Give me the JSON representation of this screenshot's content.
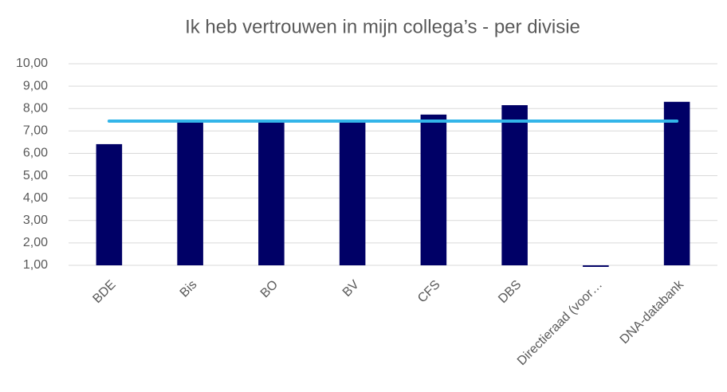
{
  "chart_data": {
    "type": "bar",
    "title": "Ik heb vertrouwen in mijn collega’s - per divisie",
    "categories": [
      "BDE",
      "Bis",
      "BO",
      "BV",
      "CFS",
      "DBS",
      "Directieraad (voor…",
      "DNA-databank"
    ],
    "series": [
      {
        "type": "bar",
        "color": "#000066",
        "values": [
          6.41,
          7.4,
          7.4,
          7.4,
          7.73,
          8.15,
          0.93,
          8.3
        ]
      },
      {
        "type": "line",
        "color": "#33b5e9",
        "values": [
          7.44,
          7.44,
          7.44,
          7.44,
          7.44,
          7.44,
          7.44,
          7.44
        ]
      }
    ],
    "ylim": [
      1,
      10
    ],
    "yticks": [
      {
        "value": 1,
        "label": "1,00"
      },
      {
        "value": 2,
        "label": "2,00"
      },
      {
        "value": 3,
        "label": "3,00"
      },
      {
        "value": 4,
        "label": "4,00"
      },
      {
        "value": 5,
        "label": "5,00"
      },
      {
        "value": 6,
        "label": "6,00"
      },
      {
        "value": 7,
        "label": "7,00"
      },
      {
        "value": 8,
        "label": "8,00"
      },
      {
        "value": 9,
        "label": "9,00"
      },
      {
        "value": 10,
        "label": "10,00"
      }
    ],
    "grid": true
  }
}
